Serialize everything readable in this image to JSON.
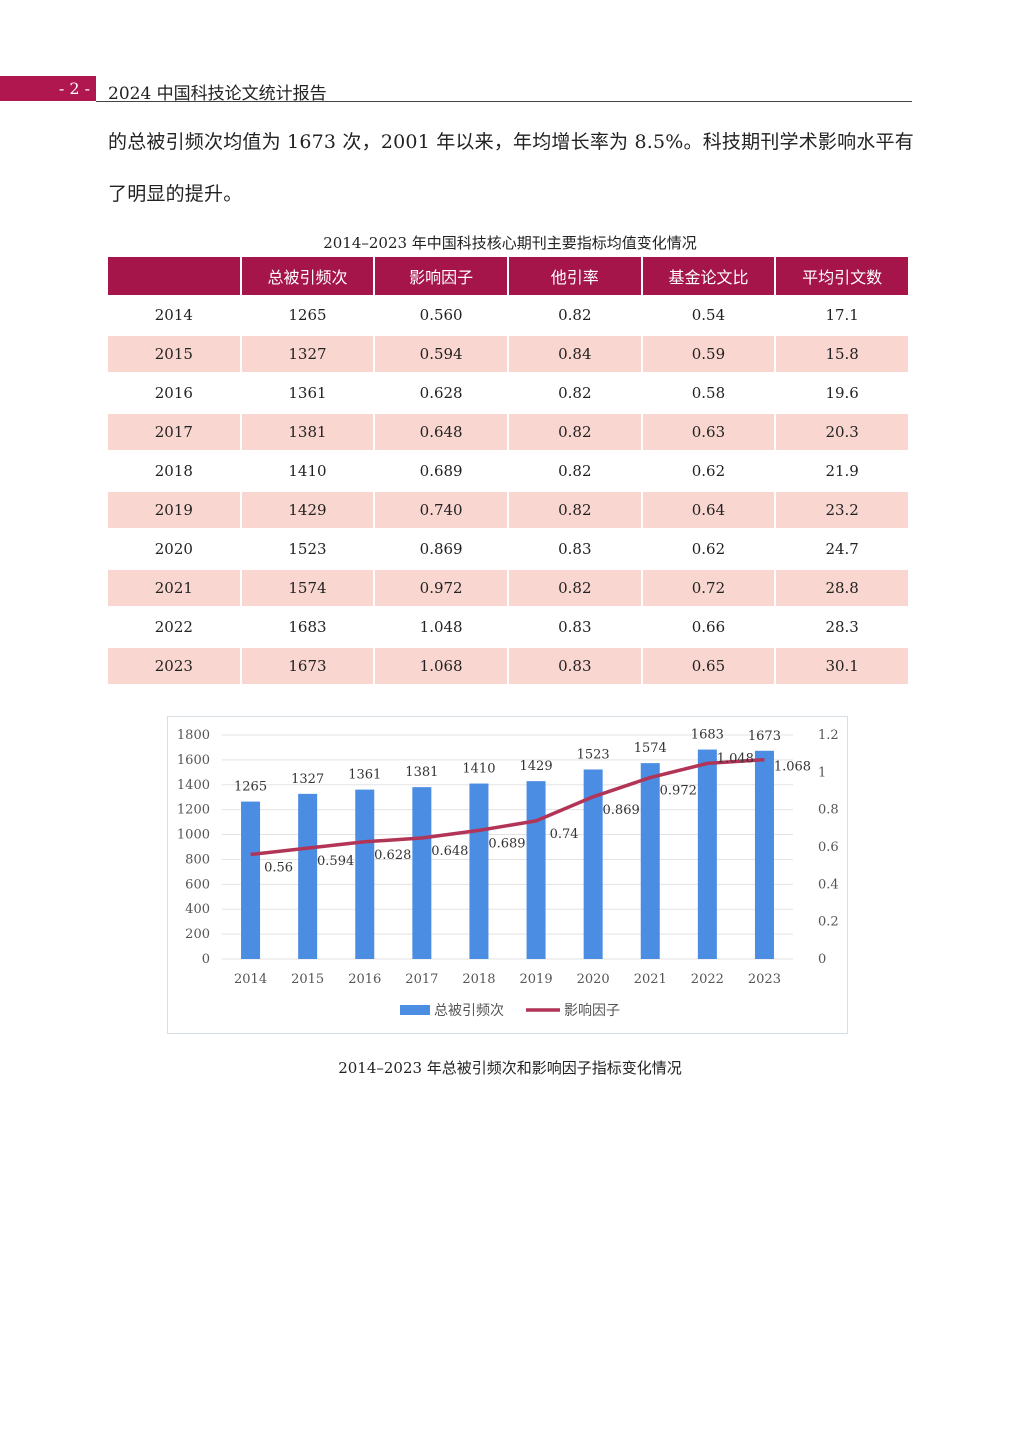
{
  "header": {
    "page_number": "- 2 -",
    "running_title": "2024 中国科技论文统计报告"
  },
  "body": {
    "para_line1": "的总被引频次均值为 1673 次，2001 年以来，年均增长率为 8.5%。科技期刊学术影响水平有",
    "para_line2": "了明显的提升。"
  },
  "table": {
    "caption": "2014–2023 年中国科技核心期刊主要指标均值变化情况",
    "headers": [
      "",
      "总被引频次",
      "影响因子",
      "他引率",
      "基金论文比",
      "平均引文数"
    ],
    "rows": [
      [
        "2014",
        "1265",
        "0.560",
        "0.82",
        "0.54",
        "17.1"
      ],
      [
        "2015",
        "1327",
        "0.594",
        "0.84",
        "0.59",
        "15.8"
      ],
      [
        "2016",
        "1361",
        "0.628",
        "0.82",
        "0.58",
        "19.6"
      ],
      [
        "2017",
        "1381",
        "0.648",
        "0.82",
        "0.63",
        "20.3"
      ],
      [
        "2018",
        "1410",
        "0.689",
        "0.82",
        "0.62",
        "21.9"
      ],
      [
        "2019",
        "1429",
        "0.740",
        "0.82",
        "0.64",
        "23.2"
      ],
      [
        "2020",
        "1523",
        "0.869",
        "0.83",
        "0.62",
        "24.7"
      ],
      [
        "2021",
        "1574",
        "0.972",
        "0.82",
        "0.72",
        "28.8"
      ],
      [
        "2022",
        "1683",
        "1.048",
        "0.83",
        "0.66",
        "28.3"
      ],
      [
        "2023",
        "1673",
        "1.068",
        "0.83",
        "0.65",
        "30.1"
      ]
    ]
  },
  "chart_data": {
    "type": "bar",
    "title": "",
    "categories": [
      "2014",
      "2015",
      "2016",
      "2017",
      "2018",
      "2019",
      "2020",
      "2021",
      "2022",
      "2023"
    ],
    "series": [
      {
        "name": "总被引频次",
        "type": "bar",
        "axis": "left",
        "color": "#4a8de3",
        "values": [
          1265,
          1327,
          1361,
          1381,
          1410,
          1429,
          1523,
          1574,
          1683,
          1673
        ],
        "labels": [
          "1265",
          "1327",
          "1361",
          "1381",
          "1410",
          "1429",
          "1523",
          "1574",
          "1683",
          "1673"
        ]
      },
      {
        "name": "影响因子",
        "type": "line",
        "axis": "right",
        "color": "#b23457",
        "values": [
          0.56,
          0.594,
          0.628,
          0.648,
          0.689,
          0.74,
          0.869,
          0.972,
          1.048,
          1.068
        ],
        "labels": [
          "0.56",
          "0.594",
          "0.628",
          "0.648",
          "0.689",
          "0.74",
          "0.869",
          "0.972",
          "1.048",
          "1.068"
        ]
      }
    ],
    "y_left": {
      "min": 0,
      "max": 1800,
      "ticks": [
        "0",
        "200",
        "400",
        "600",
        "800",
        "1000",
        "1200",
        "1400",
        "1600",
        "1800"
      ]
    },
    "y_right": {
      "min": 0,
      "max": 1.2,
      "ticks": [
        "0",
        "0.2",
        "0.4",
        "0.6",
        "0.8",
        "1",
        "1.2"
      ]
    },
    "grid": true,
    "legend_position": "bottom",
    "caption": "2014–2023 年总被引频次和影响因子指标变化情况"
  }
}
